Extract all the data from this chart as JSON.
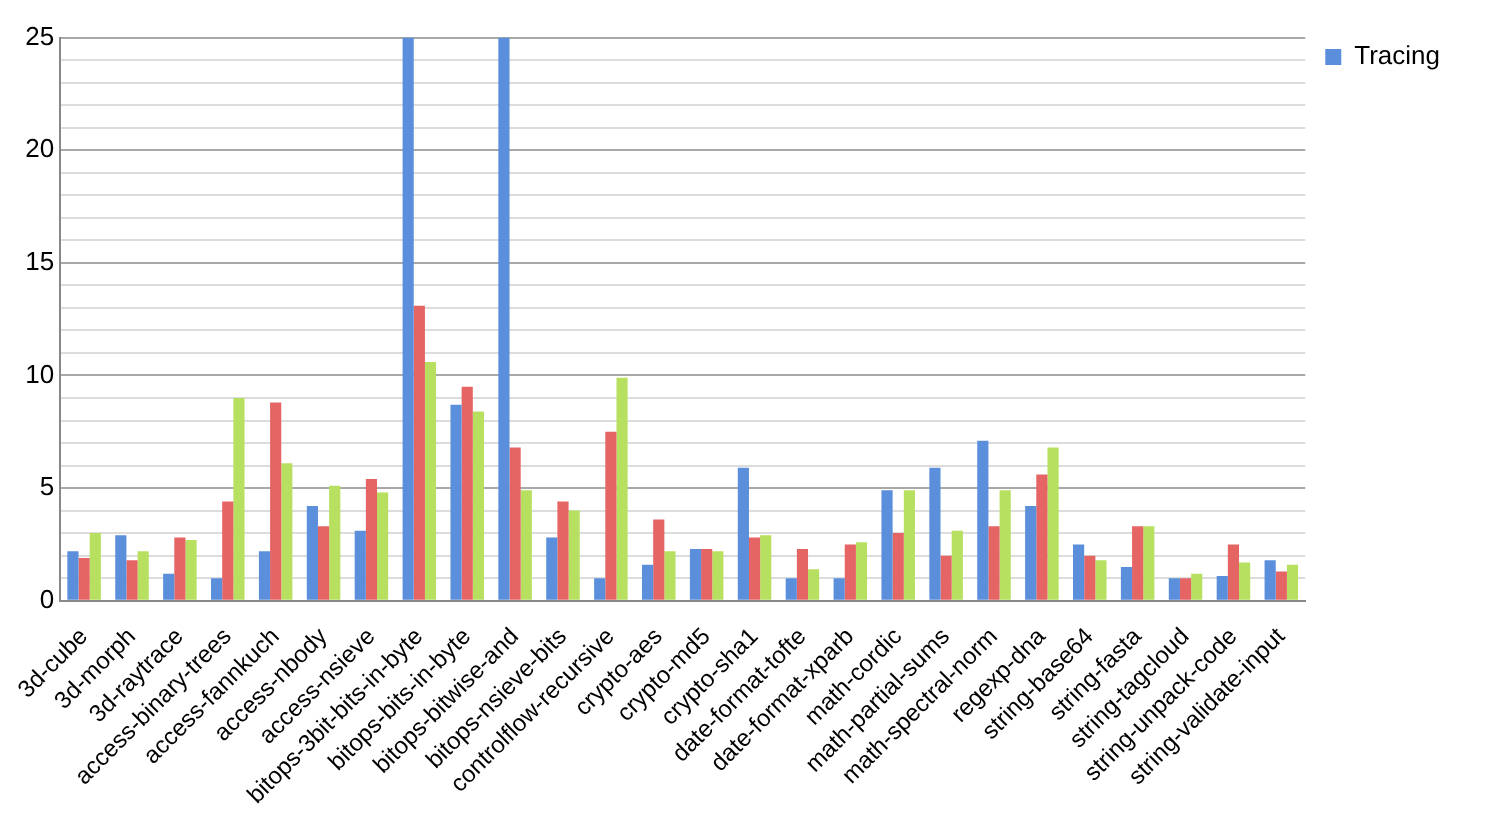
{
  "chart_data": {
    "type": "bar",
    "categories": [
      "3d-cube",
      "3d-morph",
      "3d-raytrace",
      "access-binary-trees",
      "access-fannkuch",
      "access-nbody",
      "access-nsieve",
      "bitops-3bit-bits-in-byte",
      "bitops-bits-in-byte",
      "bitops-bitwise-and",
      "bitops-nsieve-bits",
      "controlflow-recursive",
      "crypto-aes",
      "crypto-md5",
      "crypto-sha1",
      "date-format-tofte",
      "date-format-xparb",
      "math-cordic",
      "math-partial-sums",
      "math-spectral-norm",
      "regexp-dna",
      "string-base64",
      "string-fasta",
      "string-tagcloud",
      "string-unpack-code",
      "string-validate-input"
    ],
    "series": [
      {
        "name": "Tracing",
        "color": "#5b8fdb",
        "values": [
          2.2,
          2.9,
          1.2,
          1.0,
          2.2,
          4.2,
          3.1,
          25,
          8.7,
          25,
          2.8,
          1.0,
          1.6,
          2.3,
          5.9,
          1.0,
          1.0,
          4.9,
          5.9,
          7.1,
          4.2,
          2.5,
          1.5,
          1.0,
          1.1,
          1.8
        ]
      },
      {
        "color": "#e56464",
        "values": [
          1.9,
          1.8,
          2.8,
          4.4,
          8.8,
          3.3,
          5.4,
          13.1,
          9.5,
          6.8,
          4.4,
          7.5,
          3.6,
          2.3,
          2.8,
          2.3,
          2.5,
          3.0,
          2.0,
          3.3,
          5.6,
          2.0,
          3.3,
          1.0,
          2.5,
          1.3
        ]
      },
      {
        "color": "#b8e060",
        "values": [
          3.0,
          2.2,
          2.7,
          9.0,
          6.1,
          5.1,
          4.8,
          10.6,
          8.4,
          4.9,
          4.0,
          9.9,
          2.2,
          2.2,
          2.9,
          1.4,
          2.6,
          4.9,
          3.1,
          4.9,
          6.8,
          1.8,
          3.3,
          1.2,
          1.7,
          1.6
        ]
      }
    ],
    "ylim": [
      0,
      25
    ],
    "yticks": [
      0,
      {
        "value": 1,
        "label": null
      },
      {
        "value": 2,
        "label": null
      },
      {
        "value": 3,
        "label": null
      },
      {
        "value": 4,
        "label": null
      },
      5,
      {
        "value": 6,
        "label": null
      },
      {
        "value": 7,
        "label": null
      },
      {
        "value": 8,
        "label": null
      },
      {
        "value": 9,
        "label": null
      },
      10,
      {
        "value": 11,
        "label": null
      },
      {
        "value": 12,
        "label": null
      },
      {
        "value": 13,
        "label": null
      },
      {
        "value": 14,
        "label": null
      },
      15,
      {
        "value": 16,
        "label": null
      },
      {
        "value": 17,
        "label": null
      },
      {
        "value": 18,
        "label": null
      },
      {
        "value": 19,
        "label": null
      },
      20,
      {
        "value": 21,
        "label": null
      },
      {
        "value": 22,
        "label": null
      },
      {
        "value": 23,
        "label": null
      },
      {
        "value": 24,
        "label": null
      },
      25
    ],
    "grid": "y",
    "legend": "top right"
  }
}
